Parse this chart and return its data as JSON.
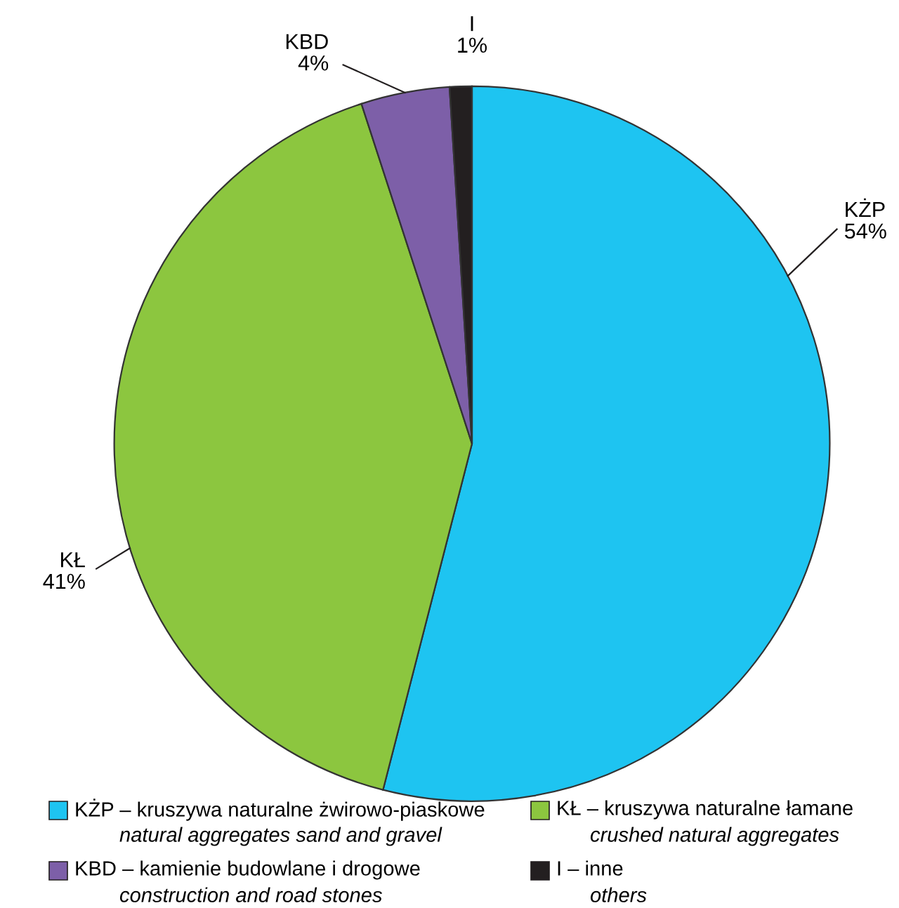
{
  "chart_data": {
    "type": "pie",
    "categories": [
      "KŻP",
      "KŁ",
      "KBD",
      "I"
    ],
    "values": [
      54,
      41,
      4,
      1
    ],
    "colors": [
      "#1ec4f1",
      "#8cc63f",
      "#7d5fa8",
      "#231f20"
    ],
    "value_labels": [
      "54%",
      "41%",
      "4%",
      "1%"
    ],
    "annotations": [
      "KŻP – kruszywa naturalne żwirowo-piaskowe",
      "natural aggregates sand and gravel",
      "KŁ – kruszywa naturalne łamane",
      "crushed natural aggregates",
      "KBD – kamienie budowlane i drogowe",
      "construction and road stones",
      "I – inne",
      "others"
    ]
  }
}
